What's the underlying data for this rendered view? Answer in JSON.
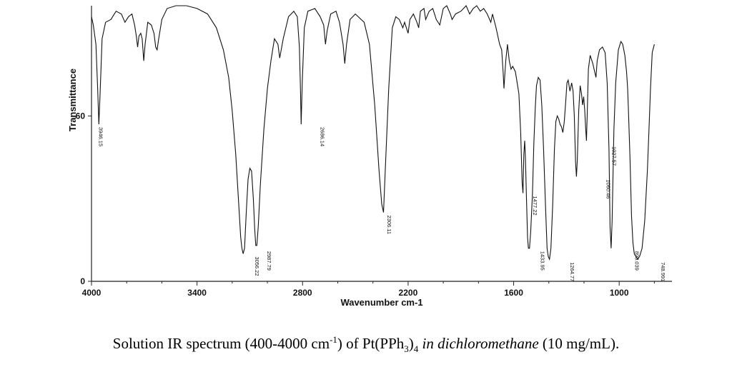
{
  "chart_data": {
    "type": "line",
    "xlabel": "Wavenumber cm-1",
    "ylabel": "Transmittance",
    "xlim": [
      4000,
      700
    ],
    "ylim": [
      0,
      100
    ],
    "x_ticks": [
      4000,
      3400,
      2800,
      2200,
      1600,
      1000
    ],
    "y_ticks": [
      0,
      60
    ],
    "grid": false,
    "series": [
      {
        "points": [
          [
            4000,
            96
          ],
          [
            3990,
            93
          ],
          [
            3975,
            86
          ],
          [
            3965,
            70
          ],
          [
            3958,
            57
          ],
          [
            3950,
            70
          ],
          [
            3940,
            88
          ],
          [
            3920,
            94
          ],
          [
            3890,
            95
          ],
          [
            3860,
            98
          ],
          [
            3830,
            97
          ],
          [
            3810,
            94
          ],
          [
            3790,
            96
          ],
          [
            3770,
            97
          ],
          [
            3755,
            93
          ],
          [
            3745,
            89
          ],
          [
            3738,
            85
          ],
          [
            3730,
            89
          ],
          [
            3720,
            90
          ],
          [
            3712,
            88
          ],
          [
            3703,
            80
          ],
          [
            3695,
            86
          ],
          [
            3680,
            94
          ],
          [
            3660,
            93
          ],
          [
            3645,
            90
          ],
          [
            3635,
            85
          ],
          [
            3627,
            84
          ],
          [
            3618,
            88
          ],
          [
            3600,
            95
          ],
          [
            3570,
            99
          ],
          [
            3520,
            100
          ],
          [
            3460,
            100
          ],
          [
            3400,
            99
          ],
          [
            3340,
            97
          ],
          [
            3290,
            92
          ],
          [
            3250,
            84
          ],
          [
            3220,
            74
          ],
          [
            3200,
            62
          ],
          [
            3180,
            46
          ],
          [
            3165,
            30
          ],
          [
            3152,
            16
          ],
          [
            3145,
            12
          ],
          [
            3138,
            10
          ],
          [
            3130,
            12
          ],
          [
            3120,
            25
          ],
          [
            3110,
            37
          ],
          [
            3100,
            41
          ],
          [
            3090,
            40
          ],
          [
            3080,
            30
          ],
          [
            3072,
            19
          ],
          [
            3066,
            13
          ],
          [
            3060,
            13
          ],
          [
            3052,
            20
          ],
          [
            3040,
            35
          ],
          [
            3020,
            55
          ],
          [
            3000,
            70
          ],
          [
            2980,
            80
          ],
          [
            2960,
            88
          ],
          [
            2940,
            86
          ],
          [
            2930,
            81
          ],
          [
            2910,
            88
          ],
          [
            2880,
            96
          ],
          [
            2850,
            98
          ],
          [
            2830,
            96
          ],
          [
            2818,
            85
          ],
          [
            2812,
            70
          ],
          [
            2808,
            57
          ],
          [
            2802,
            72
          ],
          [
            2790,
            92
          ],
          [
            2770,
            98
          ],
          [
            2730,
            99
          ],
          [
            2700,
            96
          ],
          [
            2680,
            93
          ],
          [
            2670,
            86
          ],
          [
            2660,
            91
          ],
          [
            2640,
            97
          ],
          [
            2610,
            98
          ],
          [
            2590,
            94
          ],
          [
            2570,
            86
          ],
          [
            2560,
            79
          ],
          [
            2550,
            86
          ],
          [
            2530,
            95
          ],
          [
            2500,
            97
          ],
          [
            2450,
            94
          ],
          [
            2420,
            86
          ],
          [
            2390,
            64
          ],
          [
            2365,
            40
          ],
          [
            2350,
            28
          ],
          [
            2340,
            25
          ],
          [
            2330,
            40
          ],
          [
            2310,
            70
          ],
          [
            2290,
            92
          ],
          [
            2270,
            96
          ],
          [
            2250,
            95
          ],
          [
            2230,
            92
          ],
          [
            2220,
            94
          ],
          [
            2200,
            90
          ],
          [
            2190,
            95
          ],
          [
            2170,
            97
          ],
          [
            2150,
            94
          ],
          [
            2140,
            92
          ],
          [
            2130,
            98
          ],
          [
            2110,
            99
          ],
          [
            2100,
            95
          ],
          [
            2080,
            98
          ],
          [
            2060,
            99
          ],
          [
            2040,
            95
          ],
          [
            2020,
            93
          ],
          [
            2000,
            99
          ],
          [
            1980,
            100
          ],
          [
            1960,
            97
          ],
          [
            1950,
            95
          ],
          [
            1930,
            97
          ],
          [
            1900,
            98
          ],
          [
            1870,
            100
          ],
          [
            1850,
            97
          ],
          [
            1830,
            99
          ],
          [
            1810,
            100
          ],
          [
            1790,
            98
          ],
          [
            1770,
            99
          ],
          [
            1750,
            97
          ],
          [
            1730,
            94
          ],
          [
            1720,
            97
          ],
          [
            1700,
            92
          ],
          [
            1680,
            86
          ],
          [
            1668,
            84
          ],
          [
            1660,
            76
          ],
          [
            1655,
            70
          ],
          [
            1650,
            75
          ],
          [
            1645,
            80
          ],
          [
            1635,
            86
          ],
          [
            1625,
            80
          ],
          [
            1615,
            77
          ],
          [
            1605,
            78
          ],
          [
            1590,
            76
          ],
          [
            1580,
            72
          ],
          [
            1570,
            68
          ],
          [
            1560,
            54
          ],
          [
            1552,
            36
          ],
          [
            1547,
            32
          ],
          [
            1542,
            46
          ],
          [
            1537,
            51
          ],
          [
            1533,
            45
          ],
          [
            1527,
            30
          ],
          [
            1521,
            16
          ],
          [
            1516,
            12
          ],
          [
            1510,
            12
          ],
          [
            1503,
            18
          ],
          [
            1493,
            32
          ],
          [
            1485,
            50
          ],
          [
            1477,
            63
          ],
          [
            1470,
            71
          ],
          [
            1460,
            74
          ],
          [
            1450,
            73
          ],
          [
            1440,
            64
          ],
          [
            1430,
            48
          ],
          [
            1418,
            26
          ],
          [
            1410,
            12
          ],
          [
            1403,
            9
          ],
          [
            1396,
            8
          ],
          [
            1388,
            12
          ],
          [
            1378,
            28
          ],
          [
            1368,
            48
          ],
          [
            1360,
            58
          ],
          [
            1352,
            60
          ],
          [
            1344,
            59
          ],
          [
            1336,
            57
          ],
          [
            1328,
            56
          ],
          [
            1320,
            54
          ],
          [
            1312,
            58
          ],
          [
            1303,
            66
          ],
          [
            1297,
            72
          ],
          [
            1290,
            73
          ],
          [
            1280,
            69
          ],
          [
            1270,
            72
          ],
          [
            1262,
            69
          ],
          [
            1255,
            60
          ],
          [
            1248,
            43
          ],
          [
            1243,
            38
          ],
          [
            1238,
            44
          ],
          [
            1230,
            62
          ],
          [
            1222,
            71
          ],
          [
            1214,
            68
          ],
          [
            1208,
            64
          ],
          [
            1202,
            67
          ],
          [
            1196,
            62
          ],
          [
            1190,
            55
          ],
          [
            1186,
            51
          ],
          [
            1182,
            60
          ],
          [
            1175,
            77
          ],
          [
            1165,
            82
          ],
          [
            1150,
            79
          ],
          [
            1132,
            74
          ],
          [
            1125,
            80
          ],
          [
            1112,
            84
          ],
          [
            1095,
            85
          ],
          [
            1080,
            83
          ],
          [
            1068,
            72
          ],
          [
            1058,
            48
          ],
          [
            1052,
            20
          ],
          [
            1046,
            12
          ],
          [
            1040,
            22
          ],
          [
            1030,
            55
          ],
          [
            1020,
            72
          ],
          [
            1005,
            84
          ],
          [
            990,
            87
          ],
          [
            980,
            86
          ],
          [
            968,
            82
          ],
          [
            958,
            76
          ],
          [
            952,
            70
          ],
          [
            948,
            63
          ],
          [
            938,
            44
          ],
          [
            930,
            24
          ],
          [
            922,
            14
          ],
          [
            914,
            10
          ],
          [
            905,
            9
          ],
          [
            896,
            8
          ],
          [
            884,
            9
          ],
          [
            870,
            12
          ],
          [
            855,
            22
          ],
          [
            840,
            40
          ],
          [
            830,
            56
          ],
          [
            822,
            70
          ],
          [
            812,
            83
          ],
          [
            800,
            86
          ]
        ]
      }
    ],
    "peak_labels": [
      {
        "x": 3946.15,
        "y": 57,
        "text": "3946.15"
      },
      {
        "x": 3056.22,
        "y": 10,
        "text": "3056.22"
      },
      {
        "x": 2987.79,
        "y": 12,
        "text": "2987.79"
      },
      {
        "x": 2686.14,
        "y": 57,
        "text": "2686.14"
      },
      {
        "x": 2306.11,
        "y": 25,
        "text": "2306.11"
      },
      {
        "x": 1477.22,
        "y": 32,
        "text": "1477.22"
      },
      {
        "x": 1433.95,
        "y": 12,
        "text": "1433.95"
      },
      {
        "x": 1264.77,
        "y": 8,
        "text": "1264.77"
      },
      {
        "x": 1060.46,
        "y": 38,
        "text": "1060.46"
      },
      {
        "x": 1027.57,
        "y": 50,
        "text": "1027.57"
      },
      {
        "x": 898.039,
        "y": 12,
        "text": "898.039"
      },
      {
        "x": 748.991,
        "y": 8,
        "text": "748.991"
      }
    ]
  },
  "caption": {
    "pre": "Solution IR spectrum (400-4000 cm",
    "sup": "-1",
    "mid": ") of Pt(PPh",
    "sub": "3",
    "post_formula": ")",
    "sub2": "4",
    "italic": " in dichloromethane",
    "end": " (10 mg/mL)."
  }
}
